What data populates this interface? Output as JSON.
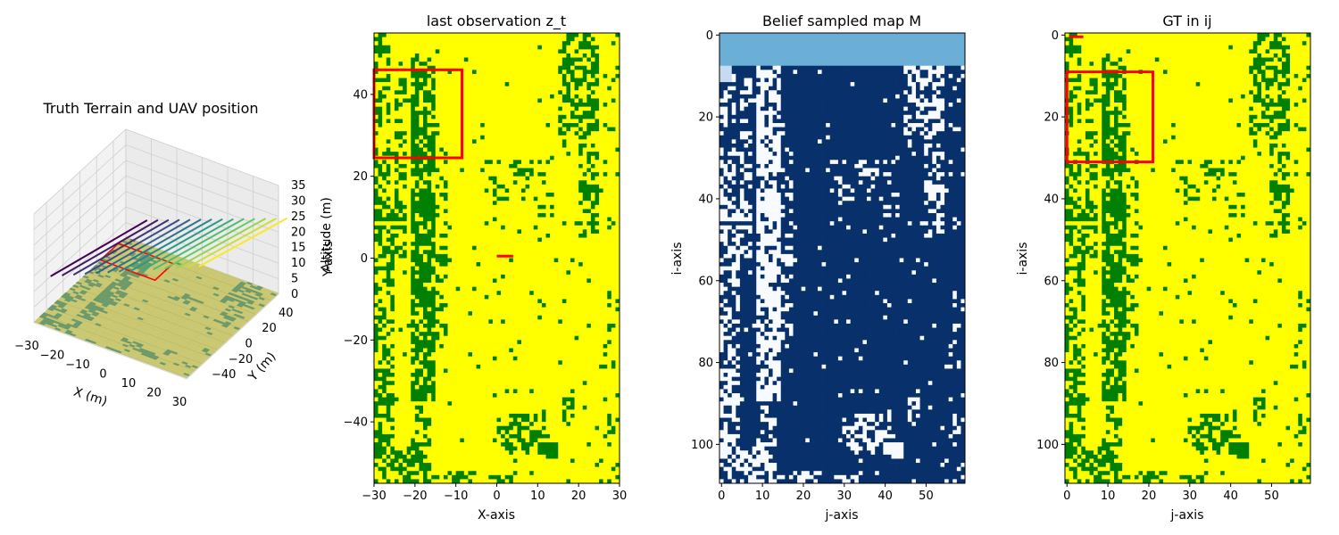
{
  "chart_data": [
    {
      "type": "3d-surface",
      "title": "Truth Terrain and UAV position",
      "xlabel": "X (m)",
      "ylabel": "Y (m)",
      "zlabel": "Altitude (m)",
      "xticks": [
        -30,
        -20,
        -10,
        0,
        10,
        20,
        30
      ],
      "yticks": [
        -40,
        -20,
        0,
        20,
        40
      ],
      "zticks": [
        0,
        5,
        10,
        15,
        20,
        25,
        30,
        35
      ],
      "xlim": [
        -30,
        30
      ],
      "ylim": [
        -55,
        55
      ],
      "zlim": [
        0,
        35
      ],
      "grid": true,
      "colors": {
        "terrain": "#c6c25e",
        "vegetation": "#4a8a6a",
        "uav_footprint": "#ff0000"
      },
      "trajectory_colormap": [
        "#440154",
        "#3b528b",
        "#21918c",
        "#5ec962",
        "#fde725"
      ]
    },
    {
      "type": "heatmap",
      "title": "last observation z_t",
      "xlabel": "X-axis",
      "ylabel": "Y-axis",
      "xticks": [
        -30,
        -20,
        -10,
        0,
        10,
        20,
        30
      ],
      "yticks": [
        -40,
        -20,
        0,
        20,
        40
      ],
      "xlim": [
        -30,
        30
      ],
      "ylim": [
        -55,
        55
      ],
      "colors": {
        "background": "#ffff00",
        "vegetation": "#008000",
        "marker": "#ff0000"
      },
      "rectangle": {
        "x0": -30,
        "x1": -8.5,
        "y0": 24.5,
        "y1": 46
      },
      "marker_segment": {
        "x0": 0,
        "x1": 4,
        "y": 0.5
      }
    },
    {
      "type": "heatmap",
      "title": "Belief sampled map M",
      "xlabel": "j-axis",
      "ylabel": "i-axis",
      "xticks": [
        0,
        10,
        20,
        30,
        40,
        50
      ],
      "yticks": [
        0,
        20,
        40,
        60,
        80,
        100
      ],
      "xlim": [
        -0.5,
        59.5
      ],
      "ylim": [
        109.5,
        -0.5
      ],
      "colors": {
        "unknown_band": "#6baed6",
        "high": "#08306b",
        "low": "#f7fbff",
        "mid": "#c6dbef"
      },
      "unknown_rows": [
        0,
        7
      ]
    },
    {
      "type": "heatmap",
      "title": "GT in ij",
      "xlabel": "j-axis",
      "ylabel": "i-axis",
      "xticks": [
        0,
        10,
        20,
        30,
        40,
        50
      ],
      "yticks": [
        0,
        20,
        40,
        60,
        80,
        100
      ],
      "xlim": [
        -0.5,
        59.5
      ],
      "ylim": [
        109.5,
        -0.5
      ],
      "colors": {
        "background": "#ffff00",
        "vegetation": "#008000",
        "marker": "#ff0000"
      },
      "rectangle": {
        "j0": 0,
        "j1": 21,
        "i0": 9,
        "i1": 31
      },
      "marker_segment": {
        "j0": 0.5,
        "j1": 4,
        "i": 0
      }
    }
  ]
}
